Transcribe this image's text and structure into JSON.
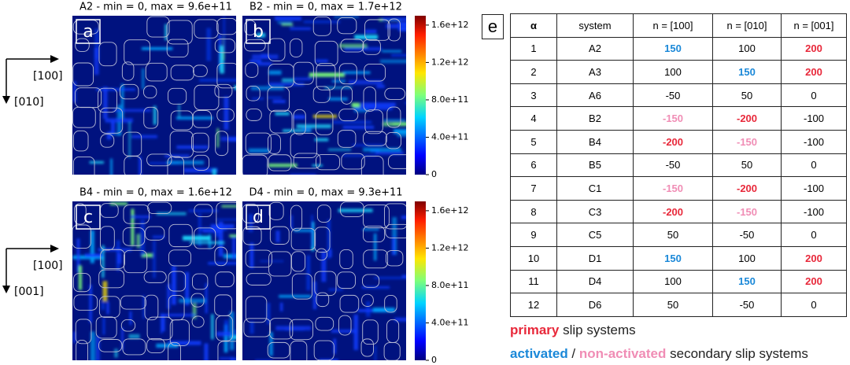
{
  "panels": [
    {
      "label": "a",
      "title": "A2 - min = 0, max = 9.6e+11"
    },
    {
      "label": "b",
      "title": "B2 - min = 0, max = 1.7e+12"
    },
    {
      "label": "c",
      "title": "B4 - min = 0, max = 1.6e+12"
    },
    {
      "label": "d",
      "title": "D4 - min = 0, max = 9.3e+11"
    }
  ],
  "colorbar": {
    "lim": [
      0,
      1700000000000
    ],
    "ticks": [
      {
        "value": 0,
        "label": "0"
      },
      {
        "value": 400000000000,
        "label": "4.0e+11"
      },
      {
        "value": 800000000000,
        "label": "8.0e+11"
      },
      {
        "value": 1200000000000,
        "label": "1.2e+12"
      },
      {
        "value": 1600000000000,
        "label": "1.6e+12"
      }
    ]
  },
  "axes": [
    {
      "horizontal": "[100]",
      "vertical": "[010]"
    },
    {
      "horizontal": "[100]",
      "vertical": "[001]"
    }
  ],
  "table": {
    "label": "e",
    "header": [
      "α",
      "system",
      "n = [100]",
      "n = [010]",
      "n = [001]"
    ],
    "rows": [
      [
        "1",
        "A2",
        "150",
        "100",
        "200"
      ],
      [
        "2",
        "A3",
        "100",
        "150",
        "200"
      ],
      [
        "3",
        "A6",
        "-50",
        "50",
        "0"
      ],
      [
        "4",
        "B2",
        "-150",
        "-200",
        "-100"
      ],
      [
        "5",
        "B4",
        "-200",
        "-150",
        "-100"
      ],
      [
        "6",
        "B5",
        "-50",
        "50",
        "0"
      ],
      [
        "7",
        "C1",
        "-150",
        "-200",
        "-100"
      ],
      [
        "8",
        "C3",
        "-200",
        "-150",
        "-100"
      ],
      [
        "9",
        "C5",
        "50",
        "-50",
        "0"
      ],
      [
        "10",
        "D1",
        "150",
        "100",
        "200"
      ],
      [
        "11",
        "D4",
        "100",
        "150",
        "200"
      ],
      [
        "12",
        "D6",
        "50",
        "-50",
        "0"
      ]
    ],
    "highlights": [
      {
        "row": 0,
        "col": 2,
        "kind": "activated"
      },
      {
        "row": 0,
        "col": 4,
        "kind": "primary"
      },
      {
        "row": 1,
        "col": 3,
        "kind": "activated"
      },
      {
        "row": 1,
        "col": 4,
        "kind": "primary"
      },
      {
        "row": 3,
        "col": 2,
        "kind": "non-activated"
      },
      {
        "row": 3,
        "col": 3,
        "kind": "primary"
      },
      {
        "row": 4,
        "col": 2,
        "kind": "primary"
      },
      {
        "row": 4,
        "col": 3,
        "kind": "non-activated"
      },
      {
        "row": 6,
        "col": 2,
        "kind": "non-activated"
      },
      {
        "row": 6,
        "col": 3,
        "kind": "primary"
      },
      {
        "row": 7,
        "col": 2,
        "kind": "primary"
      },
      {
        "row": 7,
        "col": 3,
        "kind": "non-activated"
      },
      {
        "row": 9,
        "col": 2,
        "kind": "activated"
      },
      {
        "row": 9,
        "col": 4,
        "kind": "primary"
      },
      {
        "row": 10,
        "col": 3,
        "kind": "activated"
      },
      {
        "row": 10,
        "col": 4,
        "kind": "primary"
      }
    ]
  },
  "legend": {
    "colors": {
      "primary": "#e8283a",
      "activated": "#1a88d8",
      "non-activated": "#f08db5"
    },
    "line1": [
      "primary",
      " slip systems"
    ],
    "line2": [
      "activated",
      " / ",
      "non-activated",
      " secondary slip systems"
    ]
  }
}
